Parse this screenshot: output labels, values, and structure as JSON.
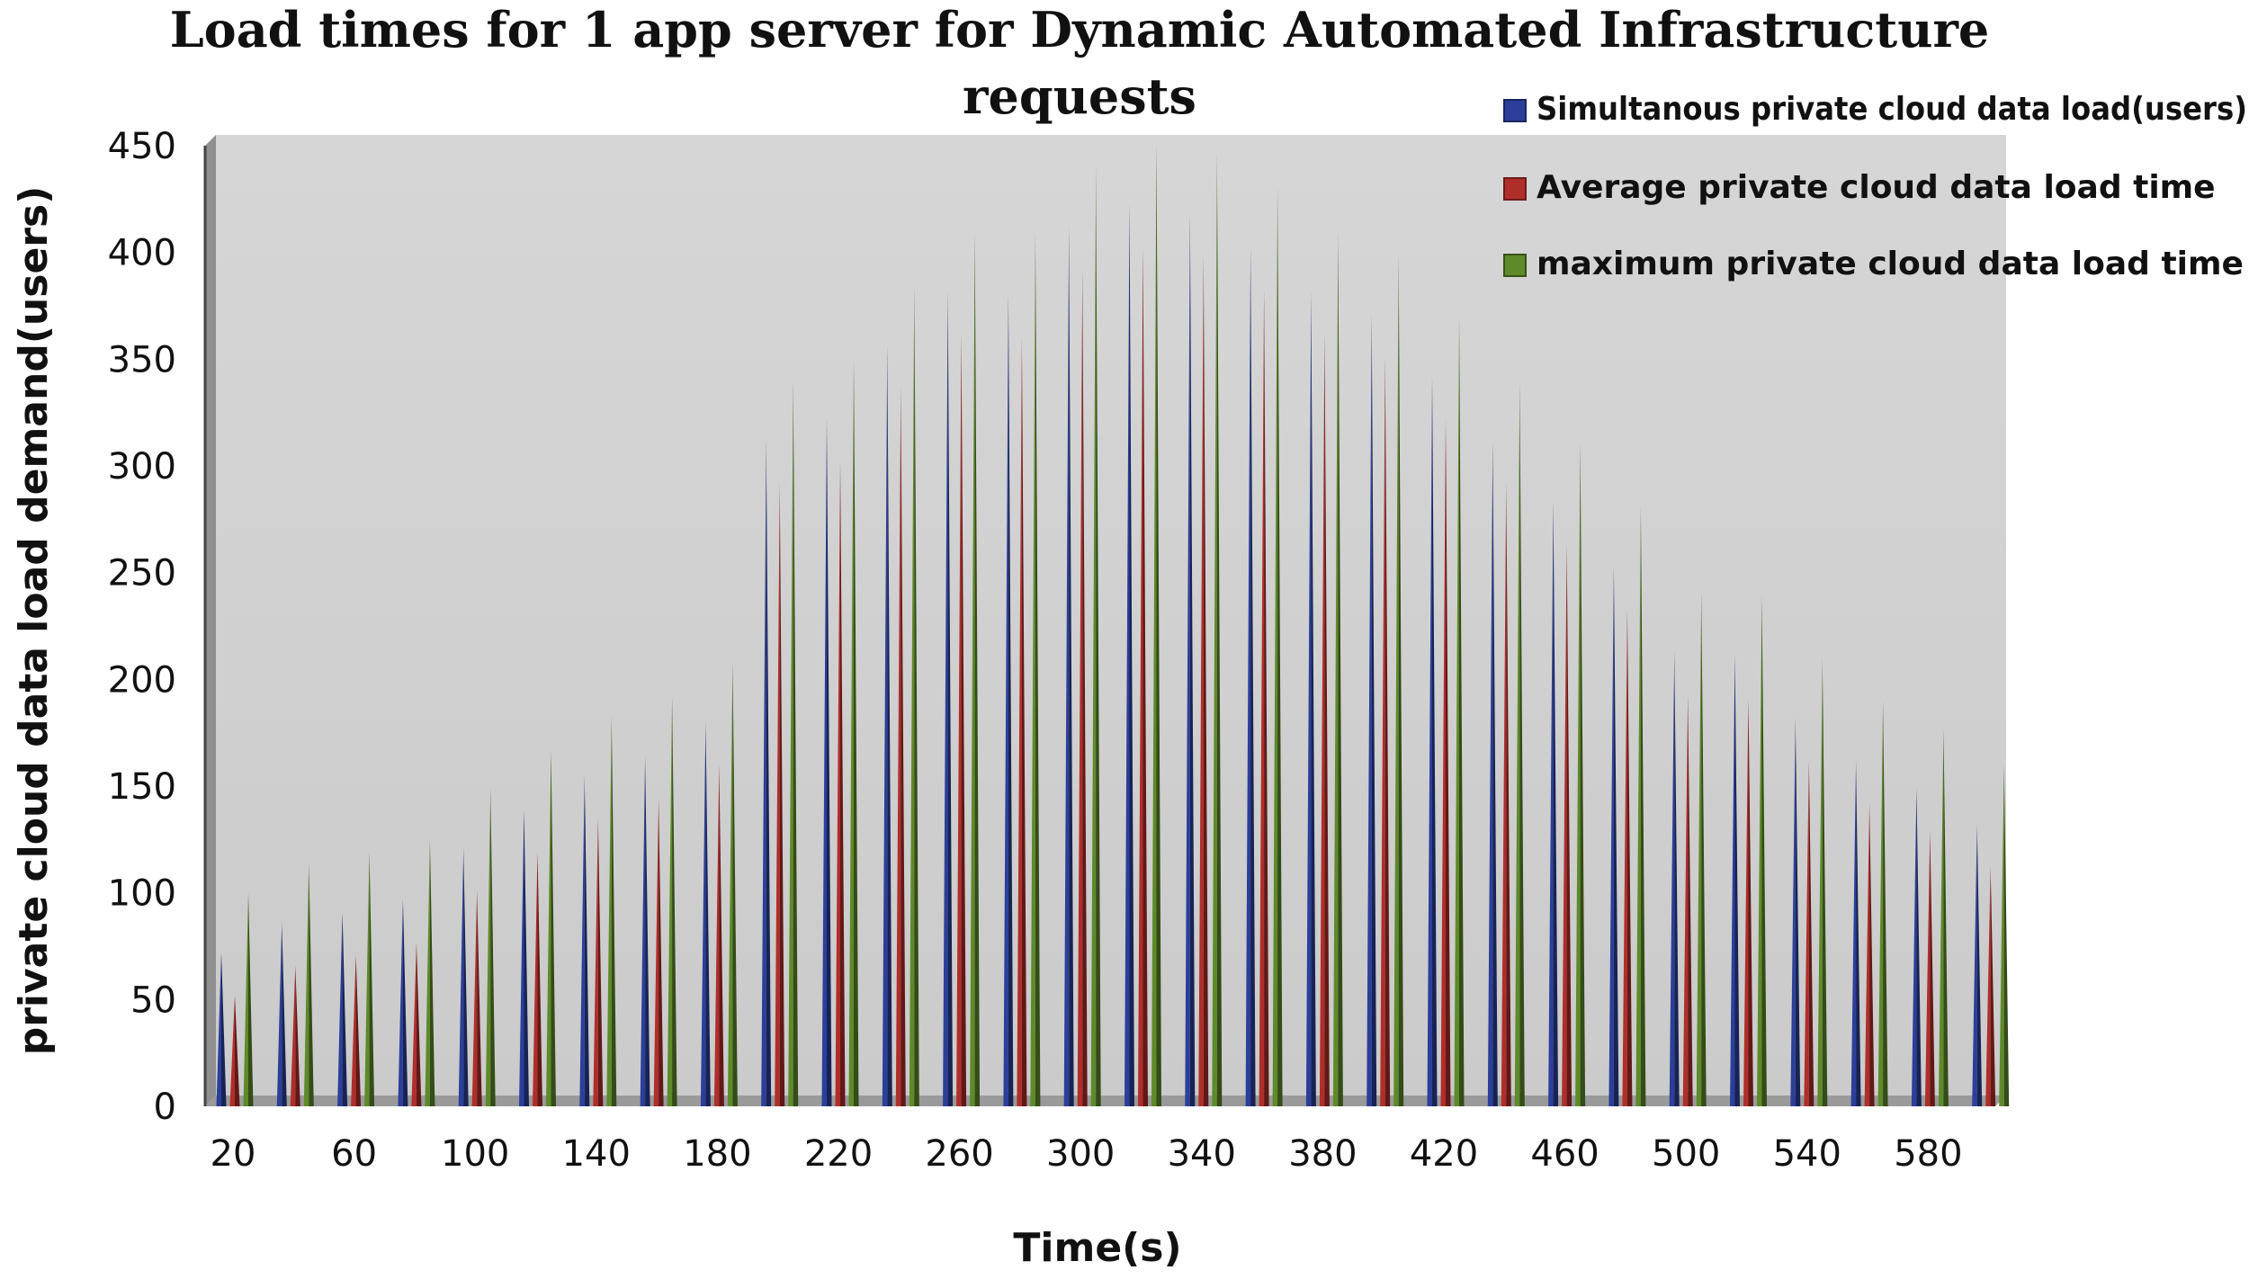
{
  "chart_data": {
    "type": "bar",
    "title_lines": [
      "Load times for 1 app server for Dynamic Automated Infrastructure",
      "requests"
    ],
    "xlabel": "Time(s)",
    "ylabel": "private cloud data load demand(users)",
    "ylim": [
      0,
      450
    ],
    "yticks": [
      0,
      50,
      100,
      150,
      200,
      250,
      300,
      350,
      400,
      450
    ],
    "x": [
      20,
      40,
      60,
      80,
      100,
      120,
      140,
      160,
      180,
      200,
      220,
      240,
      260,
      280,
      300,
      320,
      340,
      360,
      380,
      400,
      420,
      440,
      460,
      480,
      500,
      520,
      540,
      560,
      580,
      600
    ],
    "x_tick_labels": [
      "20",
      "60",
      "100",
      "140",
      "180",
      "220",
      "260",
      "300",
      "340",
      "380",
      "420",
      "460",
      "500",
      "540",
      "580"
    ],
    "grid": false,
    "legend_position": "top-right",
    "series": [
      {
        "name": "Simultanous private cloud data  load(users)",
        "color": "#2b3f9a",
        "values": [
          72,
          86,
          91,
          97,
          121,
          139,
          155,
          164,
          180,
          312,
          322,
          357,
          382,
          381,
          412,
          423,
          419,
          403,
          382,
          371,
          342,
          312,
          283,
          253,
          213,
          211,
          182,
          162,
          149,
          132
        ]
      },
      {
        "name": "Average private cloud data load time",
        "color": "#b02e2a",
        "values": [
          52,
          66,
          71,
          77,
          101,
          119,
          135,
          144,
          160,
          292,
          302,
          337,
          362,
          361,
          392,
          403,
          399,
          383,
          362,
          351,
          322,
          292,
          263,
          233,
          193,
          191,
          162,
          142,
          129,
          112
        ]
      },
      {
        "name": "maximum  private cloud data load time",
        "color": "#5e8a2a",
        "values": [
          100,
          114,
          119,
          125,
          149,
          167,
          183,
          192,
          208,
          340,
          350,
          385,
          410,
          409,
          440,
          451,
          447,
          431,
          410,
          399,
          370,
          340,
          311,
          281,
          241,
          239,
          210,
          190,
          177,
          160
        ]
      }
    ]
  }
}
